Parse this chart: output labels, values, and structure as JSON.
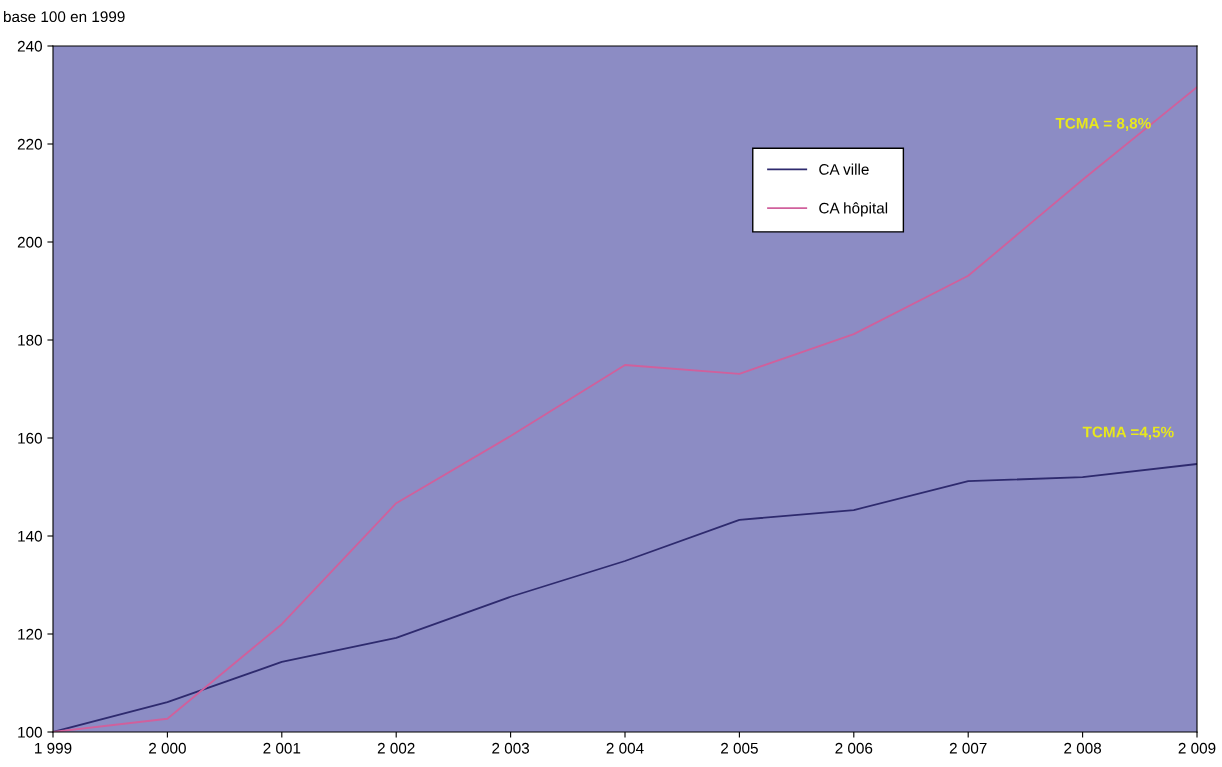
{
  "chart_data": {
    "type": "line",
    "ylabel": "base 100 en 1999",
    "x": [
      1999,
      2000,
      2001,
      2002,
      2003,
      2004,
      2005,
      2006,
      2007,
      2008,
      2009
    ],
    "series": [
      {
        "name": "CA ville",
        "color": "#2e2a6e",
        "values": [
          100,
          106.1,
          114.3,
          119.2,
          127.6,
          134.9,
          143.3,
          145.3,
          151.2,
          152,
          154.7
        ]
      },
      {
        "name": "CA hôpital",
        "color": "#d0609c",
        "values": [
          100,
          102.7,
          122,
          146.7,
          160.4,
          174.9,
          173.1,
          181.2,
          193.1,
          212.7,
          231.6
        ]
      }
    ],
    "xlim": [
      1999,
      2009
    ],
    "xticks": [
      {
        "value": 1999,
        "label": "1 999"
      },
      {
        "value": 2000,
        "label": "2 000"
      },
      {
        "value": 2001,
        "label": "2 001"
      },
      {
        "value": 2002,
        "label": "2 002"
      },
      {
        "value": 2003,
        "label": "2 003"
      },
      {
        "value": 2004,
        "label": "2 004"
      },
      {
        "value": 2005,
        "label": "2 005"
      },
      {
        "value": 2006,
        "label": "2 006"
      },
      {
        "value": 2007,
        "label": "2 007"
      },
      {
        "value": 2008,
        "label": "2 008"
      },
      {
        "value": 2009,
        "label": "2 009"
      }
    ],
    "ylim": [
      100,
      240
    ],
    "yticks": [
      100,
      120,
      140,
      160,
      180,
      200,
      220,
      240
    ],
    "annotations": [
      {
        "text": "TCMA = 8,8%",
        "x": 2008.6,
        "y": 222.5
      },
      "TCMA =4,5%"
    ],
    "legend": "top",
    "grid": false,
    "marker": "none",
    "line_style": "solid"
  }
}
